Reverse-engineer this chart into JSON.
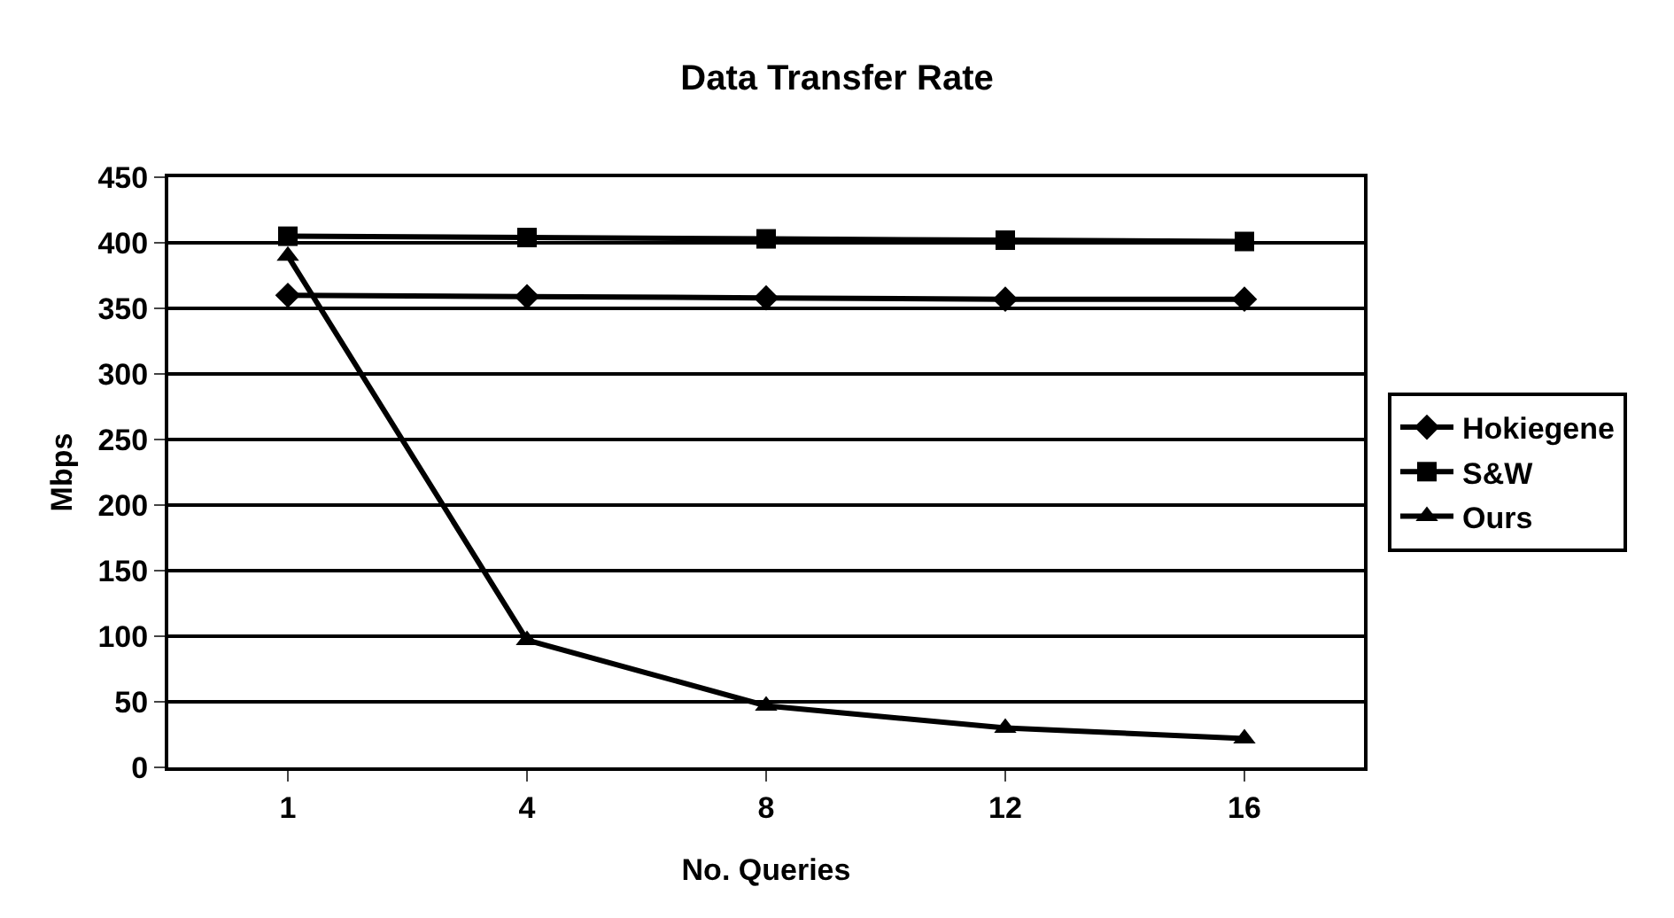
{
  "chart_data": {
    "type": "line",
    "title": "Data Transfer Rate",
    "xlabel": "No. Queries",
    "ylabel": "Mbps",
    "categories": [
      "1",
      "4",
      "8",
      "12",
      "16"
    ],
    "series": [
      {
        "name": "Hokiegene",
        "color": "#000000",
        "marker": "diamond",
        "values": [
          360,
          359,
          358,
          357,
          357
        ]
      },
      {
        "name": "S&W",
        "color": "#000000",
        "marker": "square",
        "values": [
          405,
          404,
          403,
          402,
          401
        ]
      },
      {
        "name": "Ours",
        "color": "#000000",
        "marker": "triangle",
        "values": [
          390,
          97,
          47,
          30,
          22
        ]
      }
    ],
    "ylim": [
      0,
      450
    ],
    "yticks": [
      0,
      50,
      100,
      150,
      200,
      250,
      300,
      350,
      400,
      450
    ],
    "grid": "y",
    "legend": "right",
    "line_style": "solid"
  }
}
